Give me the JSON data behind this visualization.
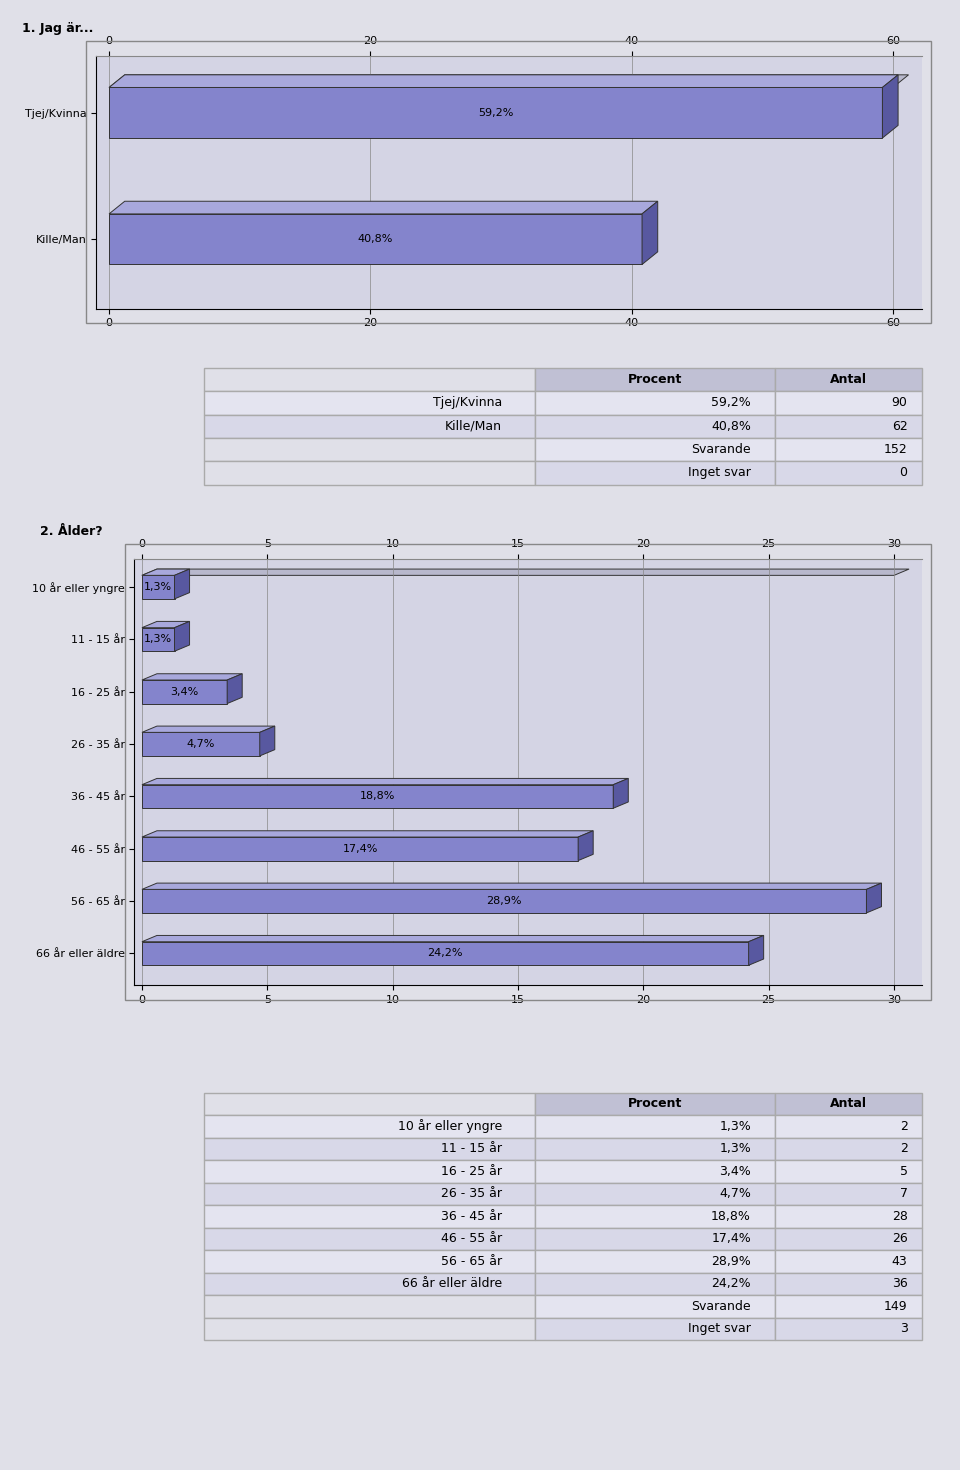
{
  "chart1_title": "1. Jag är...",
  "chart1_categories": [
    "Tjej/Kvinna",
    "Kille/Man"
  ],
  "chart1_values": [
    59.2,
    40.8
  ],
  "chart1_labels": [
    "59,2%",
    "40,8%"
  ],
  "chart1_xlim": [
    0,
    60
  ],
  "chart1_xticks": [
    0,
    20,
    40,
    60
  ],
  "table1_headers": [
    "Procent",
    "Antal"
  ],
  "table1_rows": [
    [
      "Tjej/Kvinna",
      "59,2%",
      "90"
    ],
    [
      "Kille/Man",
      "40,8%",
      "62"
    ]
  ],
  "table1_summary": [
    [
      "Svarande",
      "152"
    ],
    [
      "Inget svar",
      "0"
    ]
  ],
  "chart2_title": "2. Ålder?",
  "chart2_categories": [
    "10 år eller yngre",
    "11 - 15 år",
    "16 - 25 år",
    "26 - 35 år",
    "36 - 45 år",
    "46 - 55 år",
    "56 - 65 år",
    "66 år eller äldre"
  ],
  "chart2_values": [
    1.3,
    1.3,
    3.4,
    4.7,
    18.8,
    17.4,
    28.9,
    24.2
  ],
  "chart2_labels": [
    "1,3%",
    "1,3%",
    "3,4%",
    "4,7%",
    "18,8%",
    "17,4%",
    "28,9%",
    "24,2%"
  ],
  "chart2_xlim": [
    0,
    30
  ],
  "chart2_xticks": [
    0,
    5,
    10,
    15,
    20,
    25,
    30
  ],
  "table2_headers": [
    "Procent",
    "Antal"
  ],
  "table2_rows": [
    [
      "10 år eller yngre",
      "1,3%",
      "2"
    ],
    [
      "11 - 15 år",
      "1,3%",
      "2"
    ],
    [
      "16 - 25 år",
      "3,4%",
      "5"
    ],
    [
      "26 - 35 år",
      "4,7%",
      "7"
    ],
    [
      "36 - 45 år",
      "18,8%",
      "28"
    ],
    [
      "46 - 55 år",
      "17,4%",
      "26"
    ],
    [
      "56 - 65 år",
      "28,9%",
      "43"
    ],
    [
      "66 år eller äldre",
      "24,2%",
      "36"
    ]
  ],
  "table2_summary": [
    [
      "Svarande",
      "149"
    ],
    [
      "Inget svar",
      "3"
    ]
  ],
  "bar_color_main": "#8484cc",
  "bar_color_side": "#5858a0",
  "bar_color_top": "#a8a8dc",
  "bg_color_chart": "#d4d4e4",
  "bg_color_page": "#e0e0e8",
  "bg_color_table_header": "#c0c0d4",
  "bg_color_table_row_odd": "#e4e4f0",
  "bg_color_table_row_even": "#d8d8e8",
  "chart_border_color": "#888888",
  "font_size_title": 9,
  "font_size_tick": 8,
  "font_size_label": 8,
  "font_size_table": 9
}
